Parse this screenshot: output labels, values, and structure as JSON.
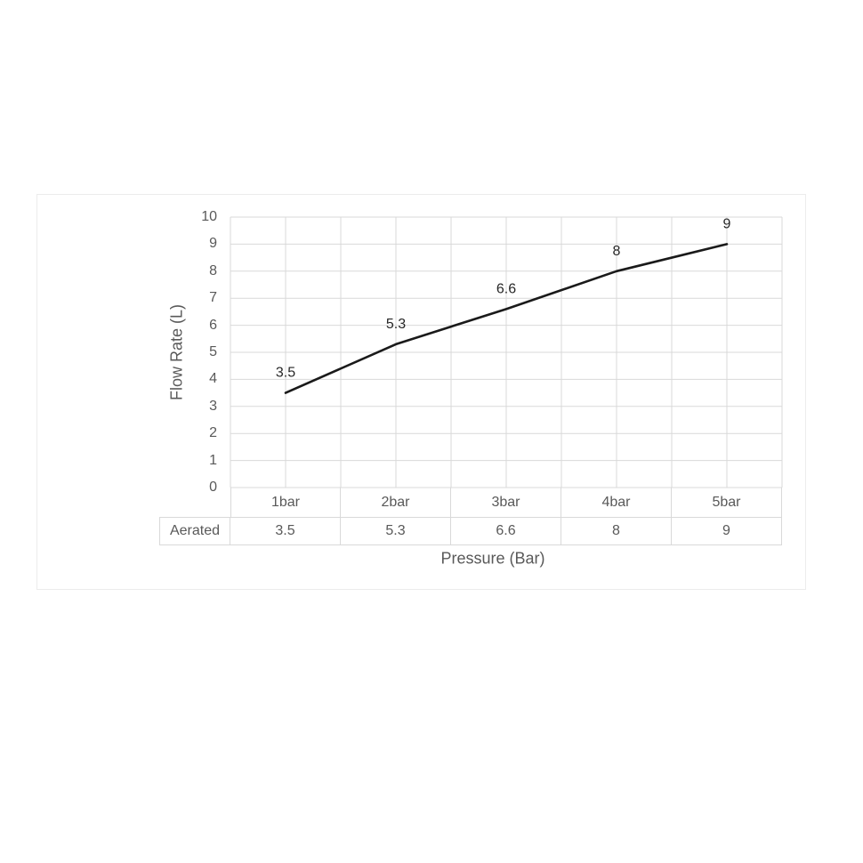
{
  "chart_data": {
    "type": "line",
    "title": "",
    "categories": [
      "1bar",
      "2bar",
      "3bar",
      "4bar",
      "5bar"
    ],
    "series": [
      {
        "name": "Aerated",
        "values": [
          3.5,
          5.3,
          6.6,
          8,
          9
        ]
      }
    ],
    "value_labels": [
      "3.5",
      "5.3",
      "6.6",
      "8",
      "9"
    ],
    "xlabel": "Pressure (Bar)",
    "ylabel": "Flow Rate (L)",
    "ylim": [
      0,
      10
    ],
    "y_tick_labels": [
      "0",
      "1",
      "2",
      "3",
      "4",
      "5",
      "6",
      "7",
      "8",
      "9",
      "10"
    ],
    "grid": true,
    "legend_position": "none",
    "data_labels_position": "above",
    "data_table": {
      "row_label": "Aerated",
      "values": [
        "3.5",
        "5.3",
        "6.6",
        "8",
        "9"
      ]
    }
  },
  "colors": {
    "line": "#1a1a1a",
    "gridline": "#d9d9d9",
    "axis_text": "#595959",
    "data_label_text": "#262626",
    "table_border": "#d9d9d9",
    "container_border": "#ececec",
    "background": "#ffffff"
  }
}
